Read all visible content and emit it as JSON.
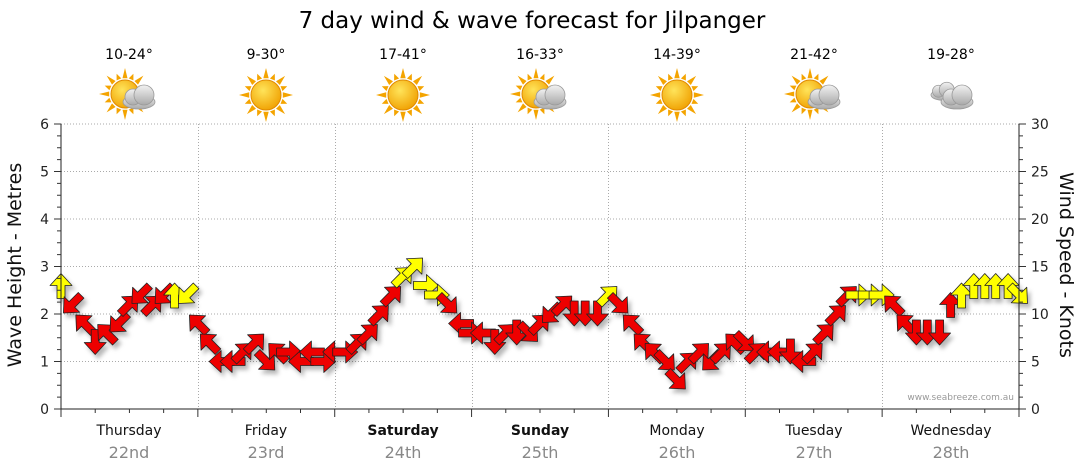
{
  "title": "7 day wind & wave forecast for Jilpanger",
  "y_left_label": "Wave Height - Metres",
  "y_right_label": "Wind Speed - Knots",
  "credit": "www.seabreeze.com.au",
  "colors": {
    "strong": "#ee0000",
    "moderate": "#ffff00",
    "outline": "#222222",
    "grid": "#aaaaaa"
  },
  "days": [
    {
      "name": "Thursday",
      "date": "22nd",
      "temp": "10-24°",
      "weather_icon": "partly-cloudy-icon",
      "bold": false
    },
    {
      "name": "Friday",
      "date": "23rd",
      "temp": "9-30°",
      "weather_icon": "sunny-icon",
      "bold": false
    },
    {
      "name": "Saturday",
      "date": "24th",
      "temp": "17-41°",
      "weather_icon": "sunny-icon",
      "bold": true
    },
    {
      "name": "Sunday",
      "date": "25th",
      "temp": "16-33°",
      "weather_icon": "partly-cloudy-icon",
      "bold": true
    },
    {
      "name": "Monday",
      "date": "26th",
      "temp": "14-39°",
      "weather_icon": "sunny-icon",
      "bold": false
    },
    {
      "name": "Tuesday",
      "date": "27th",
      "temp": "21-42°",
      "weather_icon": "partly-cloudy-icon",
      "bold": false
    },
    {
      "name": "Wednesday",
      "date": "28th",
      "temp": "19-28°",
      "weather_icon": "cloudy-icon",
      "bold": false
    }
  ],
  "chart_data": {
    "type": "line",
    "title": "7 day wind & wave forecast for Jilpanger",
    "ylabel_left": "Wave Height - Metres",
    "ylabel_right": "Wind Speed - Knots",
    "ylim_left": [
      0,
      6
    ],
    "ylim_right": [
      0,
      30
    ],
    "yticks_left": [
      0,
      1,
      2,
      3,
      4,
      5,
      6
    ],
    "yticks_right": [
      0,
      5,
      10,
      15,
      20,
      25,
      30
    ],
    "grid": true,
    "categories": [
      "Thursday 22nd",
      "Friday 23rd",
      "Saturday 24th",
      "Sunday 25th",
      "Monday 26th",
      "Tuesday 27th",
      "Wednesday 28th"
    ],
    "series": [
      {
        "values": [
          [
            0.0,
            13,
            "N"
          ],
          [
            0.08,
            11,
            "SW"
          ],
          [
            0.17,
            9,
            "NW"
          ],
          [
            0.25,
            7,
            "S"
          ],
          [
            0.33,
            8,
            "NW"
          ],
          [
            0.42,
            9,
            "SW"
          ],
          [
            0.5,
            11,
            "NE"
          ],
          [
            0.58,
            12,
            "SW"
          ],
          [
            0.67,
            11,
            "NE"
          ],
          [
            0.75,
            12,
            "SW"
          ],
          [
            0.83,
            12,
            "N"
          ],
          [
            0.92,
            12,
            "SW"
          ],
          [
            1.0,
            9,
            "NW"
          ],
          [
            1.08,
            7,
            "NW"
          ],
          [
            1.17,
            5,
            "W"
          ],
          [
            1.25,
            5,
            "W"
          ],
          [
            1.33,
            6,
            "NE"
          ],
          [
            1.42,
            7,
            "NE"
          ],
          [
            1.5,
            5,
            "SE"
          ],
          [
            1.58,
            6,
            "NW"
          ],
          [
            1.67,
            6,
            "E"
          ],
          [
            1.75,
            5,
            "W"
          ],
          [
            1.83,
            6,
            "W"
          ],
          [
            1.92,
            5,
            "E"
          ],
          [
            2.0,
            6,
            "W"
          ],
          [
            2.08,
            6,
            "E"
          ],
          [
            2.17,
            7,
            "NE"
          ],
          [
            2.25,
            8,
            "NE"
          ],
          [
            2.33,
            10,
            "NE"
          ],
          [
            2.42,
            12,
            "NE"
          ],
          [
            2.5,
            14,
            "NE"
          ],
          [
            2.58,
            15,
            "NE"
          ],
          [
            2.67,
            13,
            "E"
          ],
          [
            2.75,
            12,
            "E"
          ],
          [
            2.83,
            11,
            "SE"
          ],
          [
            2.92,
            9,
            "W"
          ],
          [
            3.0,
            8,
            "E"
          ],
          [
            3.08,
            8,
            "W"
          ],
          [
            3.17,
            7,
            "S"
          ],
          [
            3.25,
            8,
            "NE"
          ],
          [
            3.33,
            8,
            "S"
          ],
          [
            3.42,
            8,
            "SE"
          ],
          [
            3.5,
            9,
            "NE"
          ],
          [
            3.58,
            10,
            "SW"
          ],
          [
            3.67,
            11,
            "NE"
          ],
          [
            3.75,
            10,
            "S"
          ],
          [
            3.83,
            10,
            "S"
          ],
          [
            3.92,
            10,
            "S"
          ],
          [
            4.0,
            12,
            "NE"
          ],
          [
            4.08,
            11,
            "SE"
          ],
          [
            4.17,
            9,
            "NW"
          ],
          [
            4.25,
            7,
            "NW"
          ],
          [
            4.33,
            6,
            "NW"
          ],
          [
            4.42,
            5,
            "SE"
          ],
          [
            4.5,
            3,
            "SE"
          ],
          [
            4.58,
            5,
            "NE"
          ],
          [
            4.67,
            6,
            "NE"
          ],
          [
            4.75,
            5,
            "SW"
          ],
          [
            4.83,
            6,
            "NE"
          ],
          [
            4.92,
            7,
            "NW"
          ],
          [
            5.0,
            7,
            "SE"
          ],
          [
            5.08,
            6,
            "NE"
          ],
          [
            5.17,
            6,
            "W"
          ],
          [
            5.25,
            6,
            "W"
          ],
          [
            5.33,
            6,
            "S"
          ],
          [
            5.42,
            5,
            "W"
          ],
          [
            5.5,
            6,
            "NE"
          ],
          [
            5.58,
            8,
            "NE"
          ],
          [
            5.67,
            10,
            "NE"
          ],
          [
            5.75,
            12,
            "NE"
          ],
          [
            5.83,
            12,
            "E"
          ],
          [
            5.92,
            12,
            "E"
          ],
          [
            6.0,
            12,
            "E"
          ],
          [
            6.08,
            11,
            "NW"
          ],
          [
            6.17,
            9,
            "NW"
          ],
          [
            6.25,
            8,
            "S"
          ],
          [
            6.33,
            8,
            "S"
          ],
          [
            6.42,
            8,
            "S"
          ],
          [
            6.5,
            11,
            "N"
          ],
          [
            6.58,
            12,
            "N"
          ],
          [
            6.67,
            13,
            "N"
          ],
          [
            6.75,
            13,
            "N"
          ],
          [
            6.83,
            13,
            "N"
          ],
          [
            6.92,
            13,
            "N"
          ],
          [
            7.0,
            12,
            "SE"
          ]
        ]
      }
    ]
  }
}
